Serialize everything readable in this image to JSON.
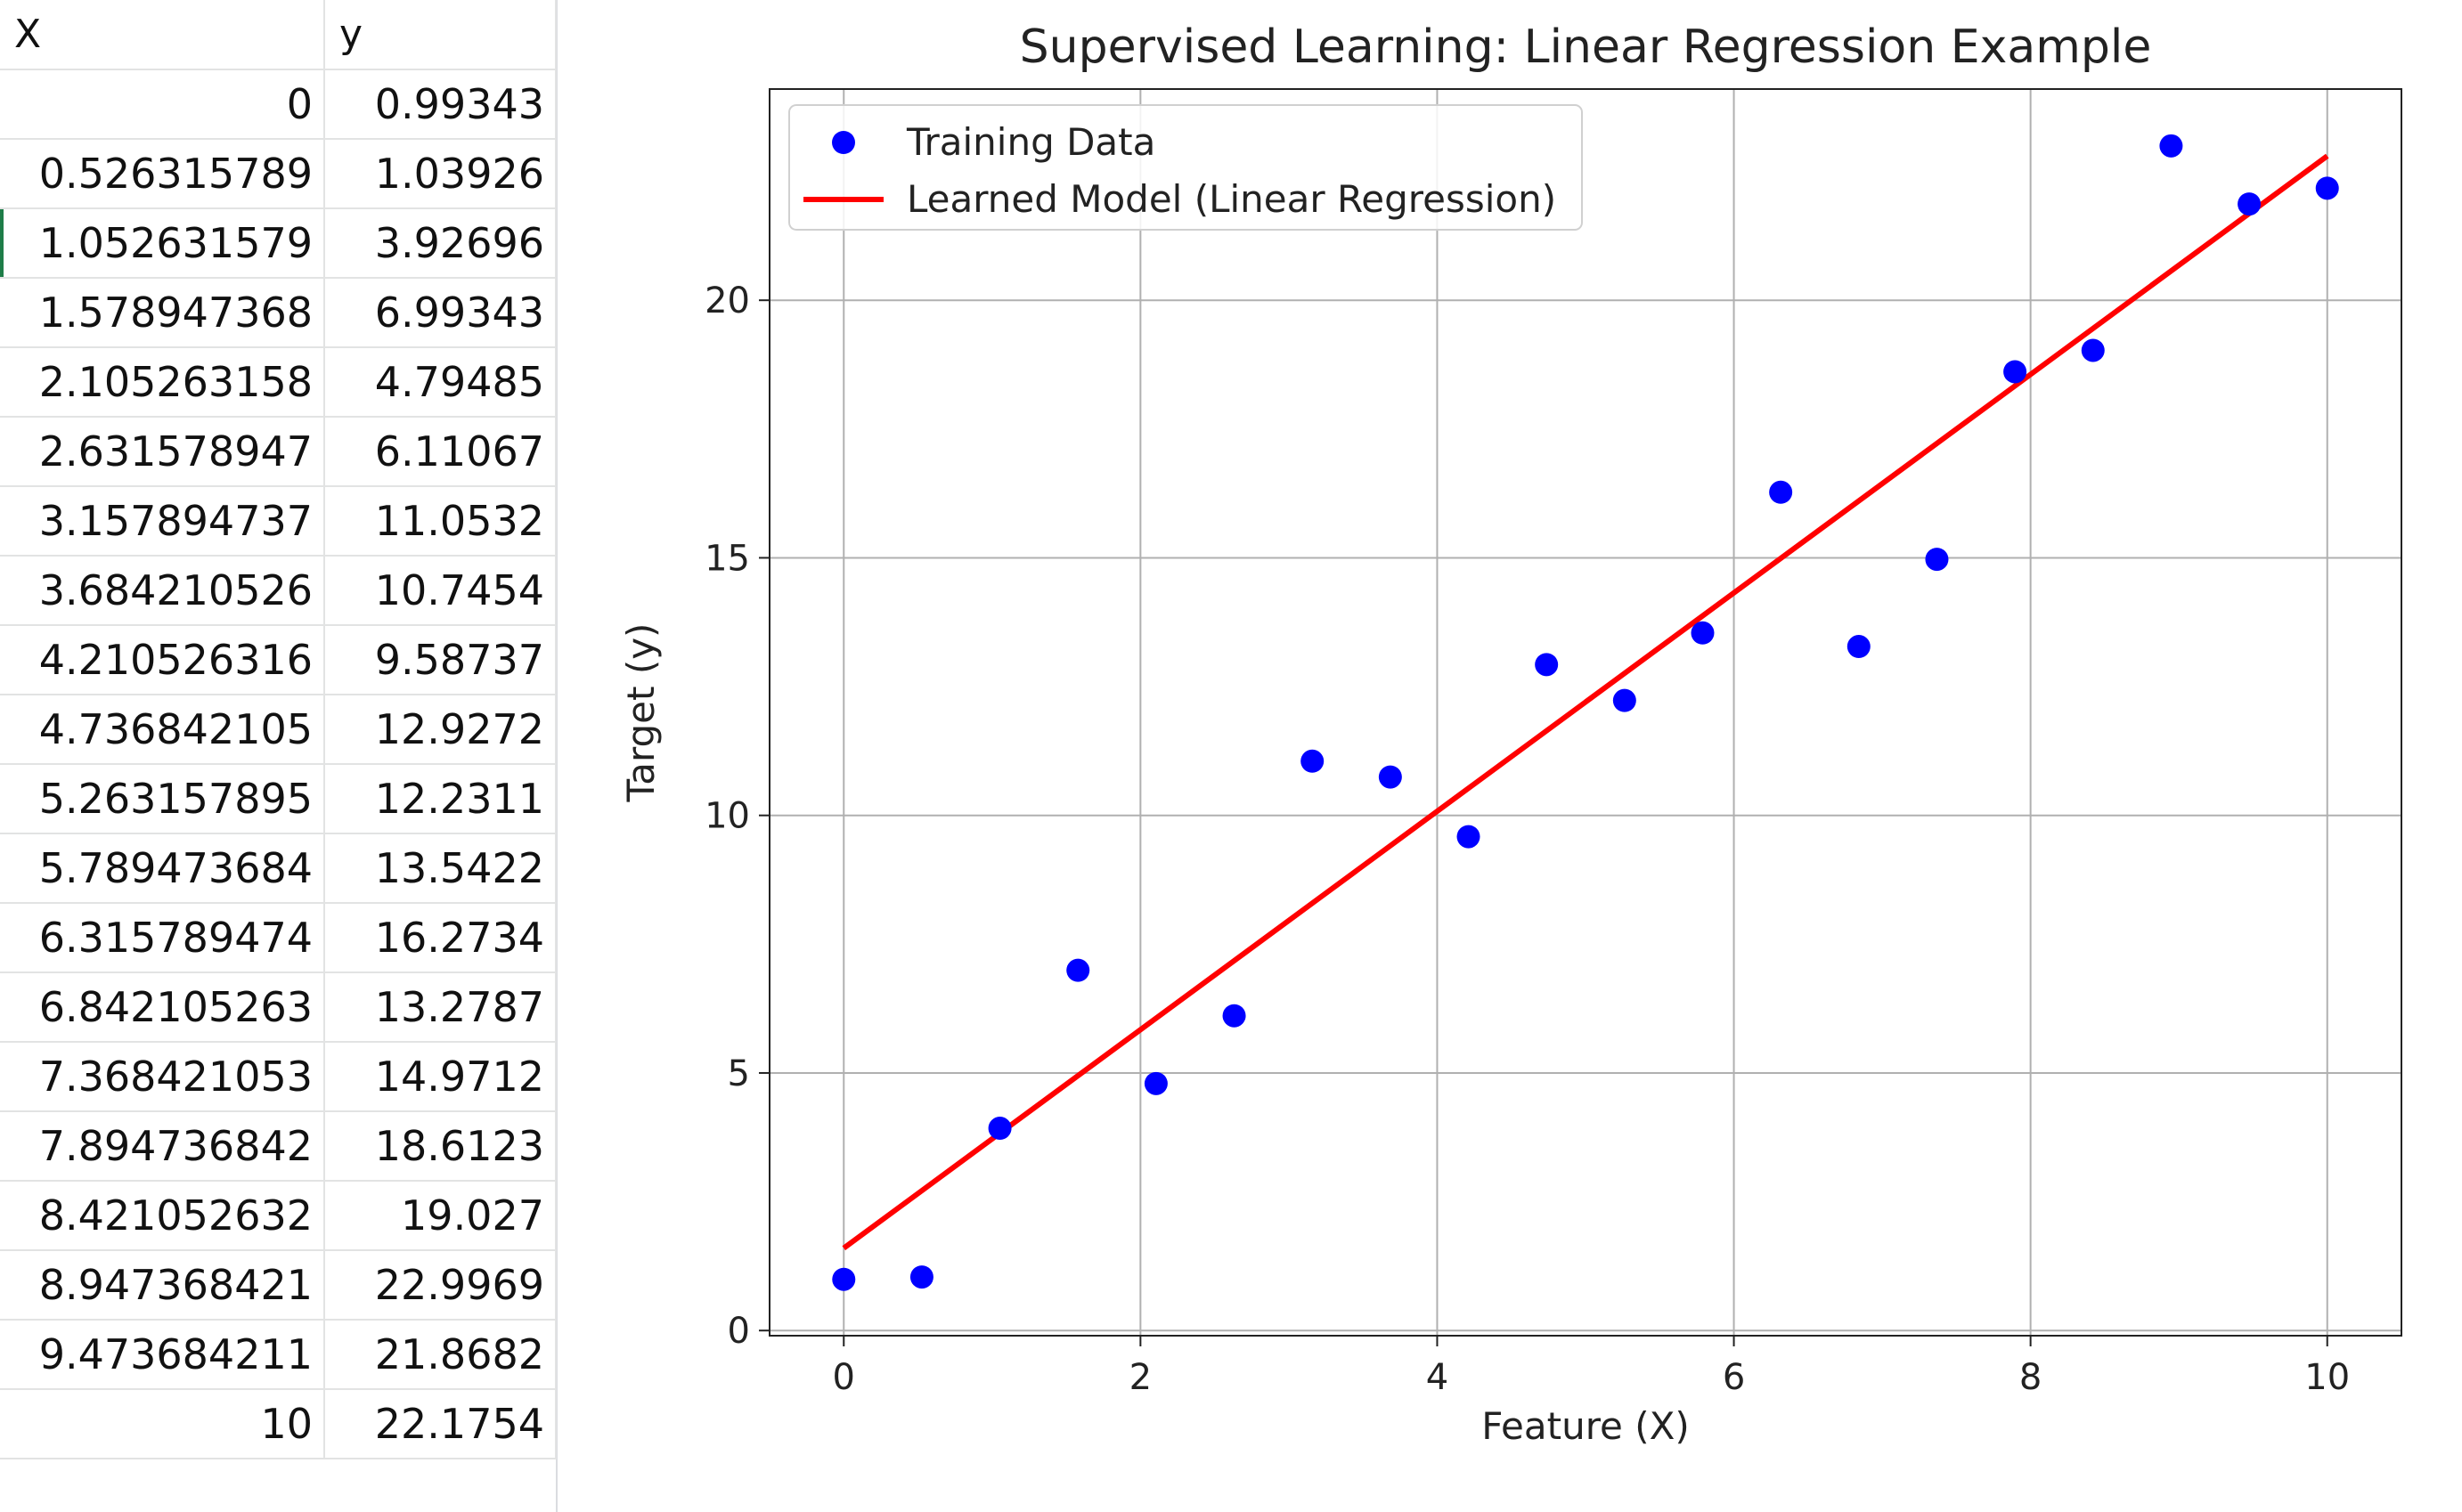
{
  "sheet": {
    "headers": [
      "X",
      "y"
    ],
    "rows": [
      [
        "0",
        "0.99343"
      ],
      [
        "0.526315789",
        "1.03926"
      ],
      [
        "1.052631579",
        "3.92696"
      ],
      [
        "1.578947368",
        "6.99343"
      ],
      [
        "2.105263158",
        "4.79485"
      ],
      [
        "2.631578947",
        "6.11067"
      ],
      [
        "3.157894737",
        "11.0532"
      ],
      [
        "3.684210526",
        "10.7454"
      ],
      [
        "4.210526316",
        "9.58737"
      ],
      [
        "4.736842105",
        "12.9272"
      ],
      [
        "5.263157895",
        "12.2311"
      ],
      [
        "5.789473684",
        "13.5422"
      ],
      [
        "6.315789474",
        "16.2734"
      ],
      [
        "6.842105263",
        "13.2787"
      ],
      [
        "7.368421053",
        "14.9712"
      ],
      [
        "7.894736842",
        "18.6123"
      ],
      [
        "8.421052632",
        "19.027"
      ],
      [
        "8.947368421",
        "22.9969"
      ],
      [
        "9.473684211",
        "21.8682"
      ],
      [
        "10",
        "22.1754"
      ]
    ],
    "selection_color": "#1e7d48"
  },
  "chart_data": {
    "type": "scatter",
    "title": "Supervised Learning: Linear Regression Example",
    "xlabel": "Feature (X)",
    "ylabel": "Target (y)",
    "xlim": [
      -0.5,
      10.5
    ],
    "ylim": [
      -0.1,
      24.1
    ],
    "xticks": [
      0,
      2,
      4,
      6,
      8,
      10
    ],
    "yticks": [
      0,
      5,
      10,
      15,
      20
    ],
    "grid": true,
    "legend_placement": "top-left",
    "series": [
      {
        "name": "Training Data",
        "kind": "scatter",
        "color": "#0000ff",
        "x": [
          0,
          0.526315789,
          1.052631579,
          1.578947368,
          2.105263158,
          2.631578947,
          3.157894737,
          3.684210526,
          4.210526316,
          4.736842105,
          5.263157895,
          5.789473684,
          6.315789474,
          6.842105263,
          7.368421053,
          7.894736842,
          8.421052632,
          8.947368421,
          9.473684211,
          10
        ],
        "y": [
          0.99343,
          1.03926,
          3.92696,
          6.99343,
          4.79485,
          6.11067,
          11.0532,
          10.7454,
          9.58737,
          12.9272,
          12.2311,
          13.5422,
          16.2734,
          13.2787,
          14.9712,
          18.6123,
          19.027,
          22.9969,
          21.8682,
          22.1754
        ]
      },
      {
        "name": "Learned Model (Linear Regression)",
        "kind": "line",
        "color": "#ff0000",
        "x": [
          0,
          10
        ],
        "y": [
          1.6,
          22.8
        ]
      }
    ]
  }
}
